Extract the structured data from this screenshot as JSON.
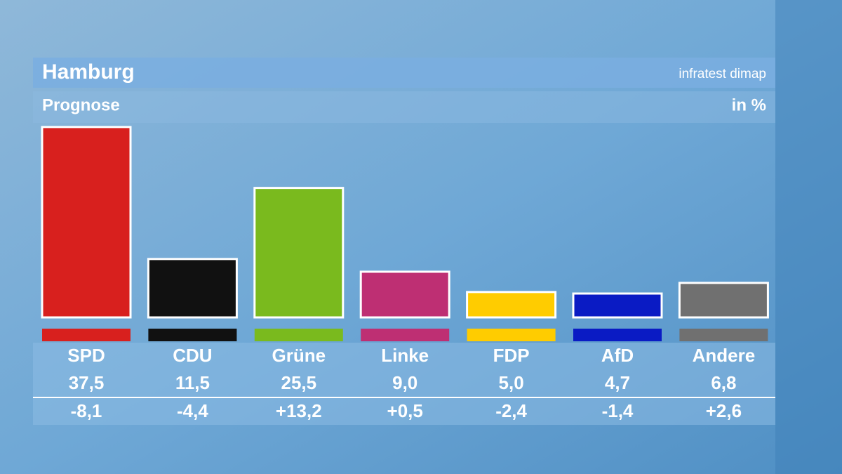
{
  "chart_data": {
    "type": "bar",
    "title": "Hamburg",
    "source": "infratest dimap",
    "subtitle": "Prognose",
    "unit": "in %",
    "categories": [
      "SPD",
      "CDU",
      "Grüne",
      "Linke",
      "FDP",
      "AfD",
      "Andere"
    ],
    "values": [
      37.5,
      11.5,
      25.5,
      9.0,
      5.0,
      4.7,
      6.8
    ],
    "value_labels": [
      "37,5",
      "11,5",
      "25,5",
      "9,0",
      "5,0",
      "4,7",
      "6,8"
    ],
    "changes": [
      -8.1,
      -4.4,
      13.2,
      0.5,
      -2.4,
      -1.4,
      2.6
    ],
    "change_labels": [
      "-8,1",
      "-4,4",
      "+13,2",
      "+0,5",
      "-2,4",
      "-1,4",
      "+2,6"
    ],
    "colors": [
      "#d8201e",
      "#111111",
      "#7aba1e",
      "#be2f73",
      "#ffcc00",
      "#0a1bc4",
      "#707070"
    ]
  }
}
